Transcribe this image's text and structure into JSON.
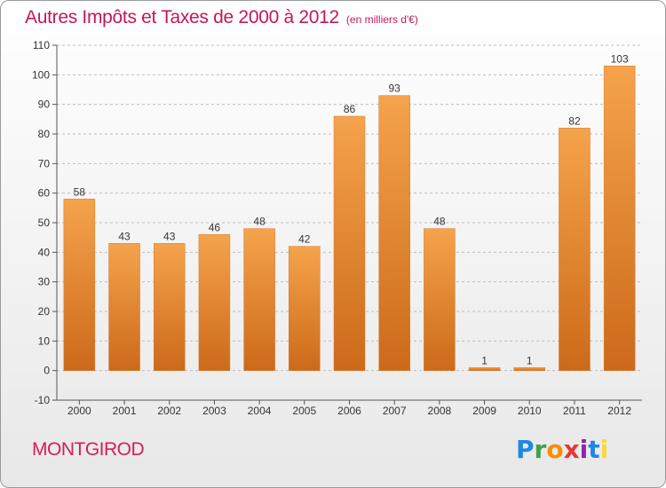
{
  "title": "Autres Impôts et Taxes de 2000 à 2012",
  "unit_note": "(en milliers d'€)",
  "commune": "MONTGIROD",
  "logo": {
    "letters": [
      "P",
      "r",
      "o",
      "x",
      "i",
      "t",
      "i"
    ],
    "colors": [
      "#1e88e5",
      "#43a047",
      "#fb8c00",
      "#e53935",
      "#8e24aa",
      "#1e88e5",
      "#fdd835"
    ]
  },
  "colors": {
    "bar_top": "#f5a34c",
    "bar_bottom": "#cc6a1a",
    "title": "#c2185b",
    "grid": "#bdbdbd"
  },
  "chart_data": {
    "type": "bar",
    "title": "Autres Impôts et Taxes de 2000 à 2012",
    "categories": [
      "2000",
      "2001",
      "2002",
      "2003",
      "2004",
      "2005",
      "2006",
      "2007",
      "2008",
      "2009",
      "2010",
      "2011",
      "2012"
    ],
    "values": [
      58,
      43,
      43,
      46,
      48,
      42,
      86,
      93,
      48,
      1,
      1,
      82,
      103
    ],
    "data_labels": [
      "58",
      "43",
      "43",
      "46",
      "48",
      "42",
      "86",
      "93",
      "48",
      "1",
      "1",
      "82",
      "103"
    ],
    "ylim": [
      -10,
      110
    ],
    "yticks": [
      -10,
      0,
      10,
      20,
      30,
      40,
      50,
      60,
      70,
      80,
      90,
      100,
      110
    ],
    "ytick_labels": [
      "-10",
      "0",
      "10",
      "20",
      "30",
      "40",
      "50",
      "60",
      "70",
      "80",
      "90",
      "100",
      "110"
    ],
    "grid": "horizontal dashed",
    "legend": "none"
  }
}
